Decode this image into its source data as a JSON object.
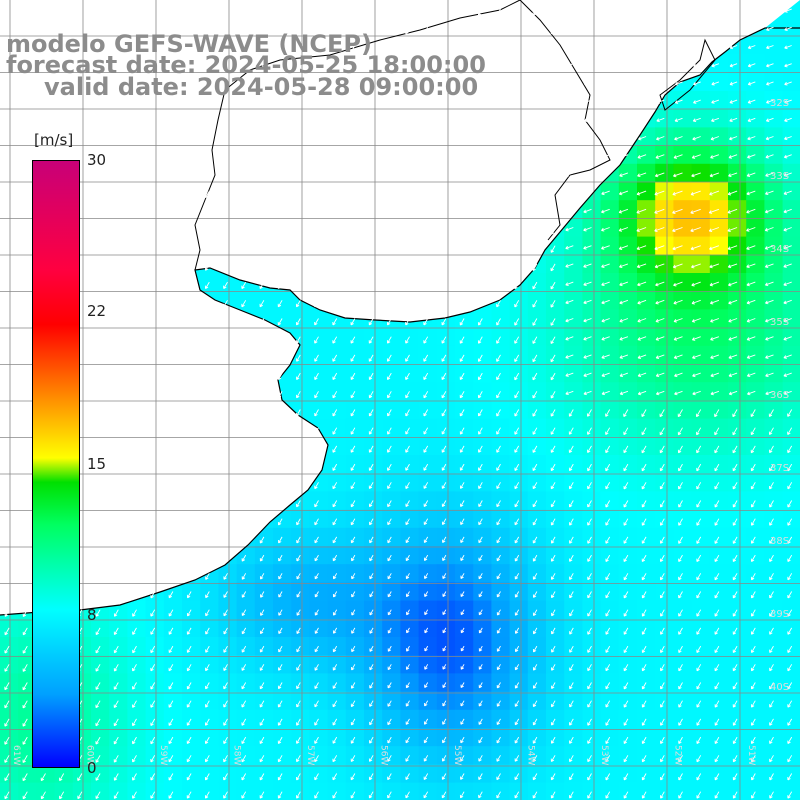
{
  "header": {
    "line1": "modelo GEFS-WAVE (NCEP)",
    "line2": "forecast date: 2024-05-25 18:00:00",
    "line3": "valid date: 2024-05-28 09:00:00"
  },
  "colorbar": {
    "unit": "[m/s]",
    "ticks": [
      "30",
      "22",
      "15",
      "8",
      "0"
    ],
    "colors": [
      "#0000ff",
      "#00a0ff",
      "#00ffff",
      "#00ff60",
      "#00e000",
      "#ffff00",
      "#ff8000",
      "#ff0000",
      "#c80078"
    ]
  },
  "lat_labels": [
    "32S",
    "33S",
    "34S",
    "35S",
    "36S",
    "37S",
    "38S",
    "39S",
    "40S"
  ],
  "lon_labels": [
    "61W",
    "60W",
    "59W",
    "58W",
    "57W",
    "56W",
    "55W",
    "54W",
    "53W",
    "52W",
    "51W"
  ],
  "style": {
    "grid_color": "#888888",
    "coast_color": "#000000",
    "arrow_color": "#ffffff",
    "land_color": "#ffffff"
  }
}
